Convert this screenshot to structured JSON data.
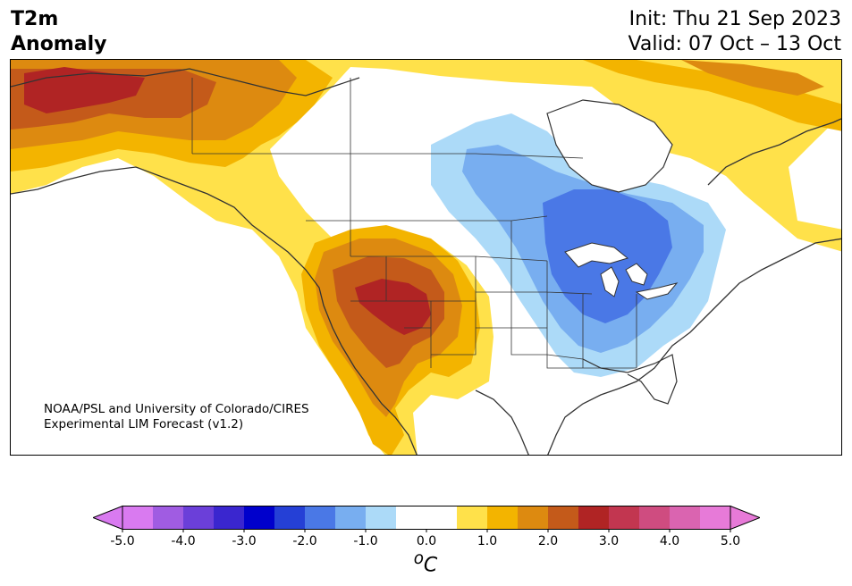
{
  "title": {
    "variable_line1": "T2m",
    "variable_line2": "Anomaly",
    "init": "Init: Thu 21 Sep 2023",
    "valid": "Valid: 07 Oct – 13 Oct"
  },
  "credit": {
    "line1": "NOAA/PSL and University of Colorado/CIRES",
    "line2": "Experimental LIM Forecast (v1.2)"
  },
  "colorbar": {
    "unit_super": "o",
    "unit": "C",
    "bins": [
      {
        "color": "#d97af0"
      },
      {
        "color": "#a05ce2"
      },
      {
        "color": "#6b3fd9"
      },
      {
        "color": "#3a26cf"
      },
      {
        "color": "#0000cc"
      },
      {
        "color": "#2540d6"
      },
      {
        "color": "#4a78e6"
      },
      {
        "color": "#78aef0"
      },
      {
        "color": "#acdaf8"
      },
      {
        "color": "#ffffff"
      },
      {
        "color": "#ffffff"
      },
      {
        "color": "#ffe14a"
      },
      {
        "color": "#f3b400"
      },
      {
        "color": "#dd8a10"
      },
      {
        "color": "#c45a1a"
      },
      {
        "color": "#b02424"
      },
      {
        "color": "#c23650"
      },
      {
        "color": "#cf4c80"
      },
      {
        "color": "#da64b0"
      },
      {
        "color": "#e77ad8"
      }
    ],
    "under_color": "#d97af0",
    "over_color": "#e77ad8",
    "ticks": [
      {
        "value": -5.0,
        "label": "-5.0"
      },
      {
        "value": -4.0,
        "label": "-4.0"
      },
      {
        "value": -3.0,
        "label": "-3.0"
      },
      {
        "value": -2.0,
        "label": "-2.0"
      },
      {
        "value": -1.0,
        "label": "-1.0"
      },
      {
        "value": 0.0,
        "label": "0.0"
      },
      {
        "value": 1.0,
        "label": "1.0"
      },
      {
        "value": 2.0,
        "label": "2.0"
      },
      {
        "value": 3.0,
        "label": "3.0"
      },
      {
        "value": 4.0,
        "label": "4.0"
      },
      {
        "value": 5.0,
        "label": "5.0"
      }
    ],
    "range": [
      -5.0,
      5.0
    ]
  },
  "map": {
    "region": "North America",
    "coastline_color": "#333333",
    "border_color": "#333333"
  }
}
